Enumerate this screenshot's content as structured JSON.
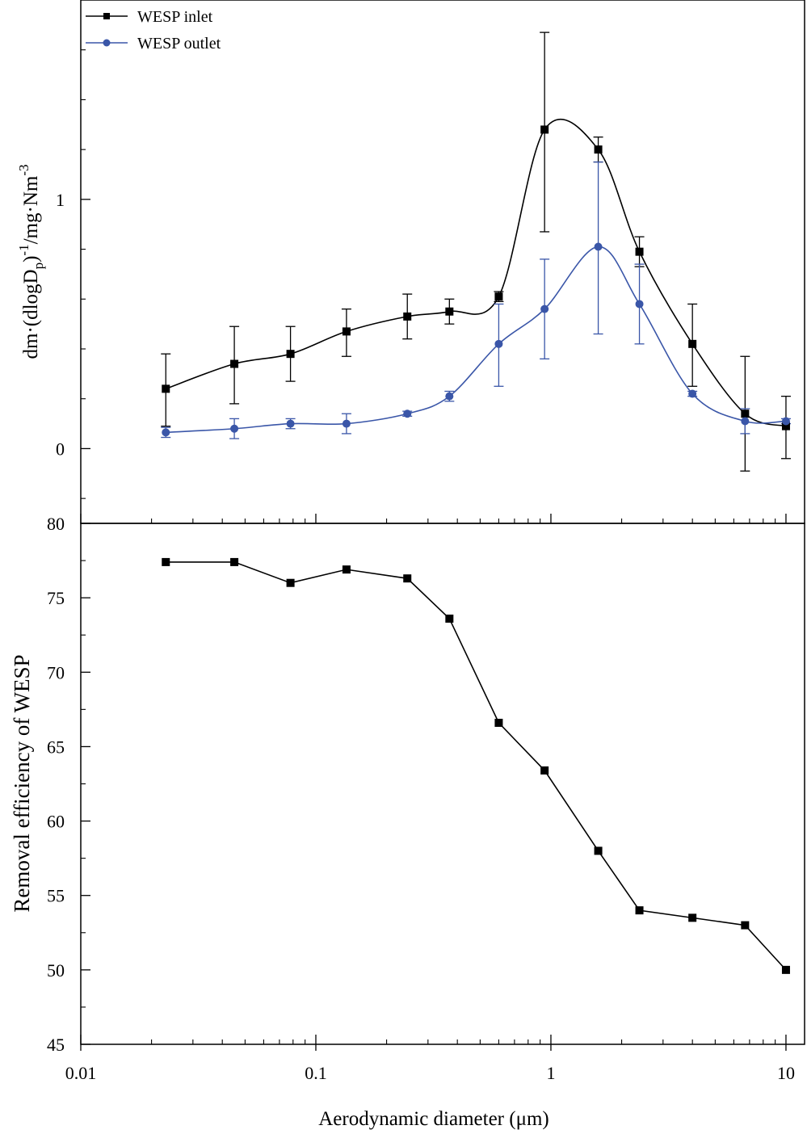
{
  "colors": {
    "inlet": "#000000",
    "outlet": "#3a56a8",
    "axis": "#000000"
  },
  "chart_data": [
    {
      "type": "line",
      "panel": "top",
      "x_scale": "log",
      "xlim": [
        0.01,
        12
      ],
      "ylim": [
        -0.3,
        1.8
      ],
      "ylabel": "dm·(dlogDp)^-1/mg·Nm^-3",
      "ylabel_parts": {
        "main": "dm·(dlogD",
        "sub": "p",
        "mid": ")",
        "sup1": "-1",
        "tail": "/mg·Nm",
        "sup2": "-3"
      },
      "yticks": [
        0,
        1
      ],
      "ytick_labels": [
        "0",
        "1"
      ],
      "legend_position": "top-left",
      "x": [
        0.023,
        0.045,
        0.078,
        0.135,
        0.245,
        0.37,
        0.6,
        0.94,
        1.59,
        2.38,
        4.0,
        6.7,
        10.0
      ],
      "series": [
        {
          "name": "WESP inlet",
          "marker": "square",
          "values": [
            0.24,
            0.34,
            0.38,
            0.47,
            0.53,
            0.55,
            0.61,
            1.28,
            1.2,
            0.79,
            0.42,
            0.14,
            0.09
          ],
          "err_low": [
            0.15,
            0.16,
            0.11,
            0.1,
            0.09,
            0.05,
            0.02,
            0.41,
            0.05,
            0.06,
            0.17,
            0.23,
            0.13
          ],
          "err_high": [
            0.14,
            0.15,
            0.11,
            0.09,
            0.09,
            0.05,
            0.02,
            0.39,
            0.05,
            0.06,
            0.16,
            0.23,
            0.12
          ]
        },
        {
          "name": "WESP outlet",
          "marker": "circle",
          "values": [
            0.065,
            0.08,
            0.1,
            0.1,
            0.14,
            0.21,
            0.42,
            0.56,
            0.81,
            0.58,
            0.22,
            0.11,
            0.11
          ],
          "err_low": [
            0.02,
            0.04,
            0.02,
            0.04,
            0.01,
            0.02,
            0.17,
            0.2,
            0.35,
            0.16,
            0.01,
            0.05,
            0.01
          ],
          "err_high": [
            0.02,
            0.04,
            0.02,
            0.04,
            0.01,
            0.02,
            0.16,
            0.2,
            0.34,
            0.16,
            0.01,
            0.05,
            0.01
          ]
        }
      ]
    },
    {
      "type": "line",
      "panel": "bottom",
      "x_scale": "log",
      "xlim": [
        0.01,
        12
      ],
      "ylim": [
        45,
        80
      ],
      "xlabel": "Aerodynamic diameter (μm)",
      "ylabel": "Removal efficiency of WESP",
      "yticks": [
        45,
        50,
        55,
        60,
        65,
        70,
        75,
        80
      ],
      "ytick_labels": [
        "45",
        "50",
        "55",
        "60",
        "65",
        "70",
        "75",
        "80"
      ],
      "xticks": [
        0.01,
        0.1,
        1,
        10
      ],
      "xtick_labels": [
        "0.01",
        "0.1",
        "1",
        "10"
      ],
      "x": [
        0.023,
        0.045,
        0.078,
        0.135,
        0.245,
        0.37,
        0.6,
        0.94,
        1.59,
        2.38,
        4.0,
        6.7,
        10.0
      ],
      "series": [
        {
          "name": "Removal efficiency",
          "marker": "square",
          "values": [
            77.4,
            77.4,
            76.0,
            76.9,
            76.3,
            73.6,
            66.6,
            63.4,
            58.0,
            54.0,
            53.5,
            53.0,
            50.0
          ]
        }
      ]
    }
  ]
}
